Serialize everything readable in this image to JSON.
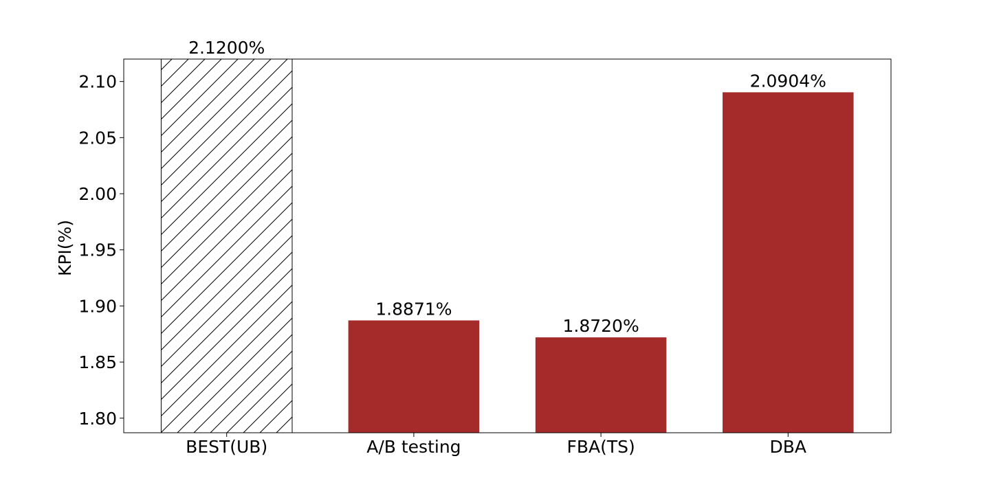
{
  "chart_data": {
    "type": "bar",
    "title": "",
    "xlabel": "",
    "ylabel": "KPI(%)",
    "categories": [
      "BEST(UB)",
      "A/B testing",
      "FBA(TS)",
      "DBA"
    ],
    "values": [
      2.12,
      1.8871,
      1.872,
      2.0904
    ],
    "data_labels": [
      "2.1200%",
      "1.8871%",
      "1.8720%",
      "2.0904%"
    ],
    "bar_styles": [
      "hatched",
      "solid",
      "solid",
      "solid"
    ],
    "bar_color": "#a52a2a",
    "hatch_color": "#000000",
    "ylim": [
      1.787,
      2.12
    ],
    "yticks": [
      1.8,
      1.85,
      1.9,
      1.95,
      2.0,
      2.05,
      2.1
    ],
    "ytick_labels": [
      "1.80",
      "1.85",
      "1.90",
      "1.95",
      "2.00",
      "2.05",
      "2.10"
    ],
    "grid": false,
    "legend": "none"
  }
}
